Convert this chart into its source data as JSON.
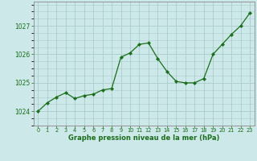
{
  "x": [
    0,
    1,
    2,
    3,
    4,
    5,
    6,
    7,
    8,
    9,
    10,
    11,
    12,
    13,
    14,
    15,
    16,
    17,
    18,
    19,
    20,
    21,
    22,
    23
  ],
  "y": [
    1024.0,
    1024.3,
    1024.5,
    1024.65,
    1024.45,
    1024.55,
    1024.6,
    1024.75,
    1024.8,
    1025.9,
    1026.05,
    1026.35,
    1026.4,
    1025.85,
    1025.4,
    1025.05,
    1025.0,
    1025.0,
    1025.15,
    1026.0,
    1026.35,
    1026.7,
    1027.0,
    1027.45
  ],
  "line_color": "#1a6e1a",
  "marker_color": "#1a6e1a",
  "bg_color": "#cce8e8",
  "grid_color": "#aacccc",
  "xlabel": "Graphe pression niveau de la mer (hPa)",
  "xlabel_color": "#1a6e1a",
  "tick_color": "#1a6e1a",
  "ylim": [
    1023.5,
    1027.85
  ],
  "yticks": [
    1024,
    1025,
    1026,
    1027
  ],
  "xticks": [
    0,
    1,
    2,
    3,
    4,
    5,
    6,
    7,
    8,
    9,
    10,
    11,
    12,
    13,
    14,
    15,
    16,
    17,
    18,
    19,
    20,
    21,
    22,
    23
  ],
  "border_color": "#888888"
}
